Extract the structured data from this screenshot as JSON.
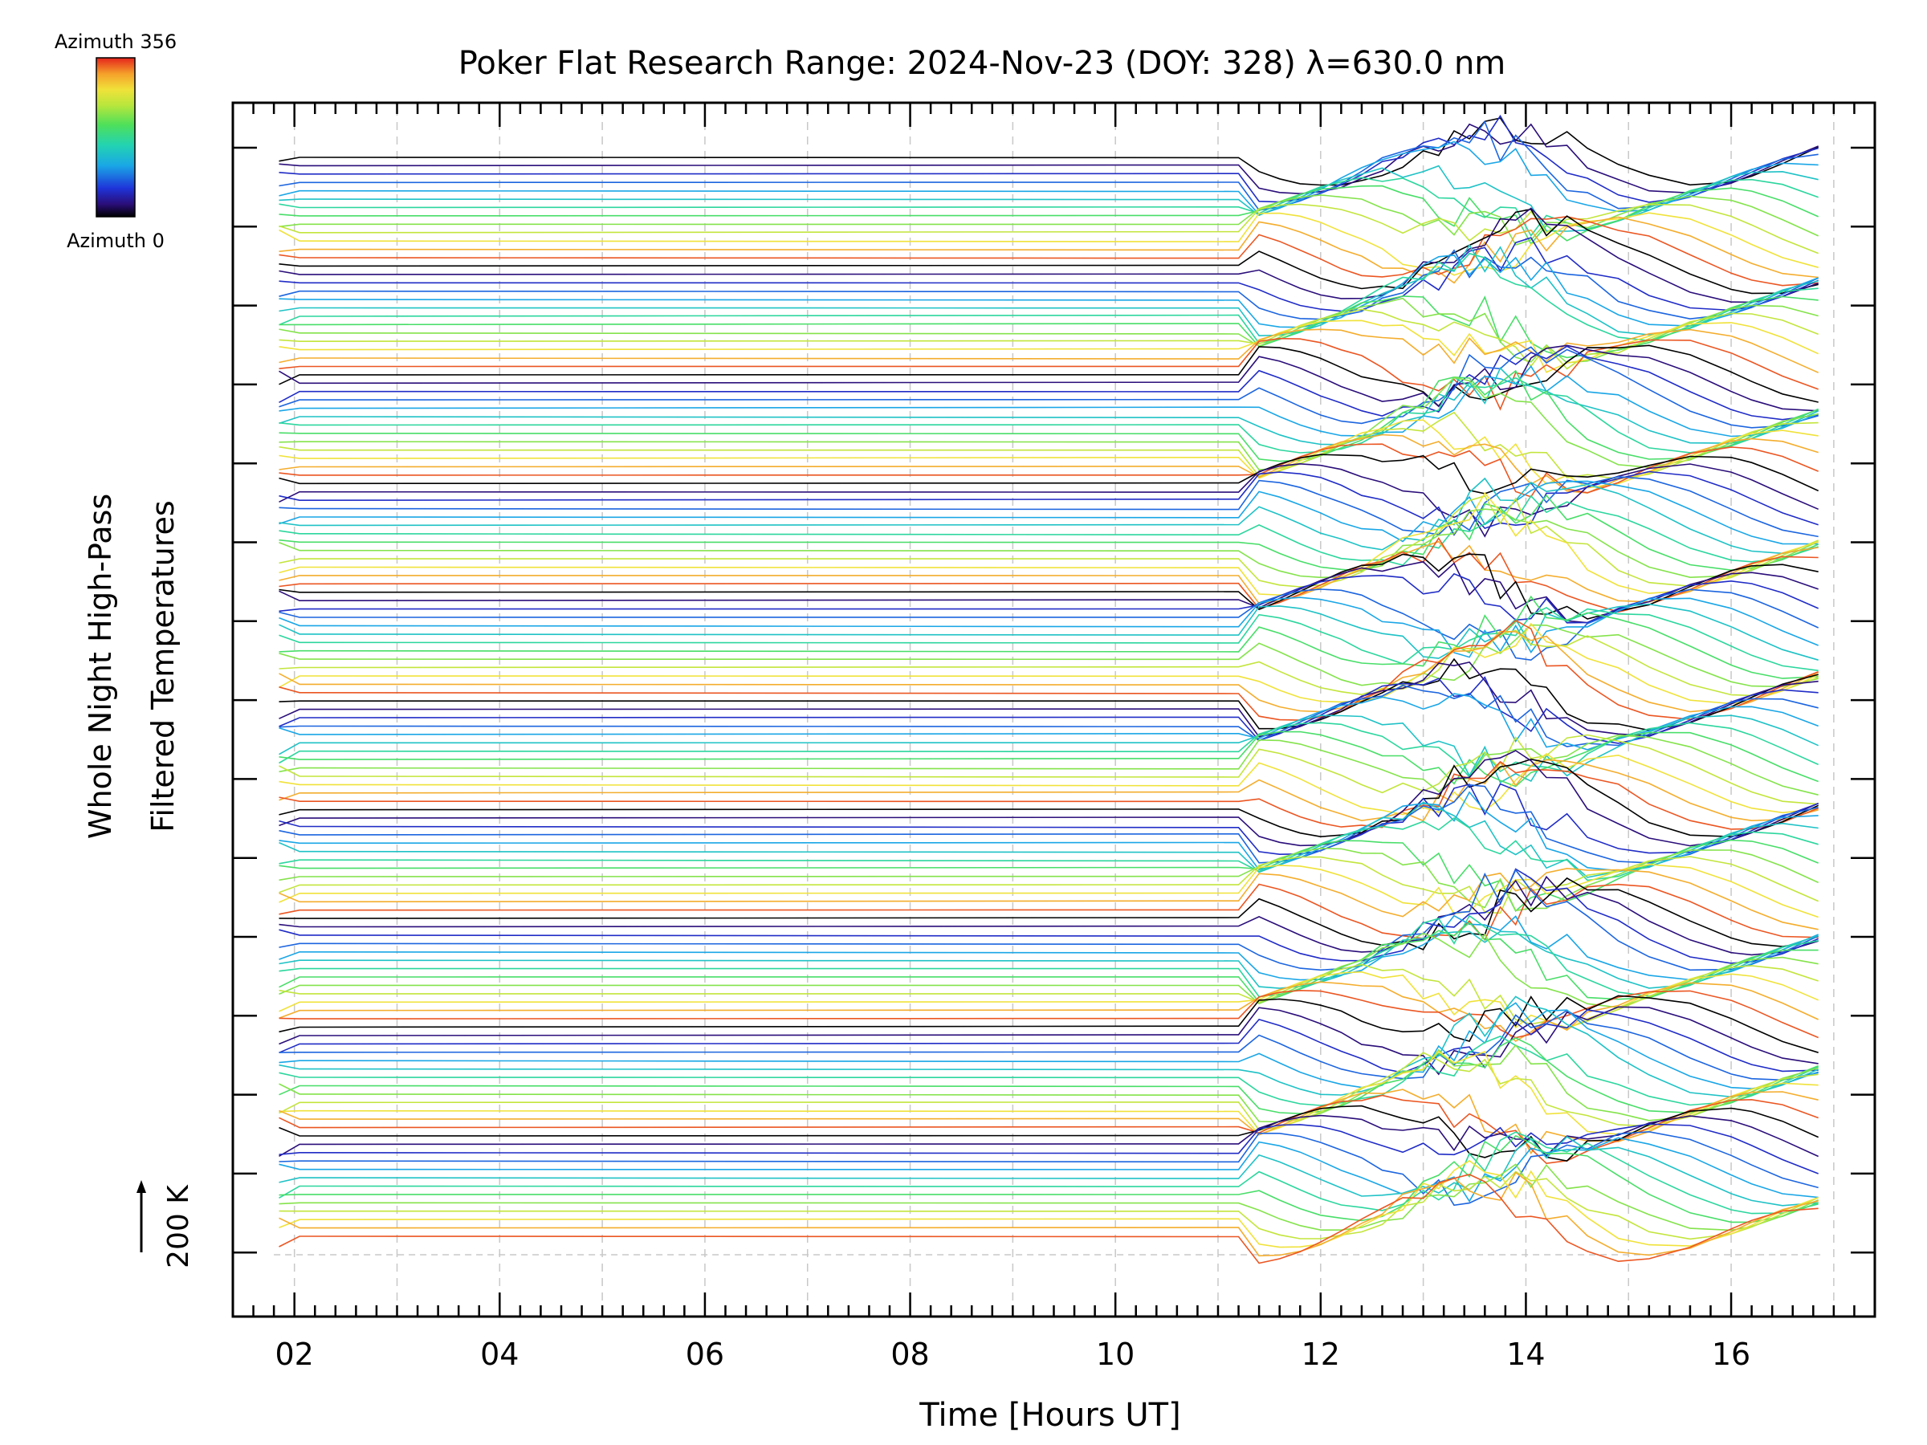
{
  "chart_data": {
    "type": "line",
    "title": "Poker Flat Research Range: 2024-Nov-23 (DOY: 328) λ=630.0 nm",
    "xlabel": "Time [Hours UT]",
    "ylabel_line1": "Whole Night High-Pass",
    "ylabel_line2": "Filtered Temperatures",
    "scale_label": "200 K",
    "xlim": [
      1.4,
      17.4
    ],
    "x_ticks": [
      2,
      4,
      6,
      8,
      10,
      12,
      14,
      16
    ],
    "x_tick_labels": [
      "02",
      "04",
      "06",
      "08",
      "10",
      "12",
      "14",
      "16"
    ],
    "colorbar": {
      "top_label": "Azimuth 356",
      "bottom_label": "Azimuth 0",
      "min": 0,
      "max": 356,
      "colormap": "rainbow"
    },
    "series_summary": {
      "trace_count": 130,
      "time_start": 1.85,
      "time_end": 16.85,
      "offset_per_trace": "stacked",
      "note": "Each trace is one azimuth direction, vertically offset; temperatures flat until ~11.2 UT, then fluctuate strongly between 11.5 and 16.9 UT."
    },
    "colors": {
      "axis": "#000000",
      "grid": "#c8c8c8"
    }
  }
}
